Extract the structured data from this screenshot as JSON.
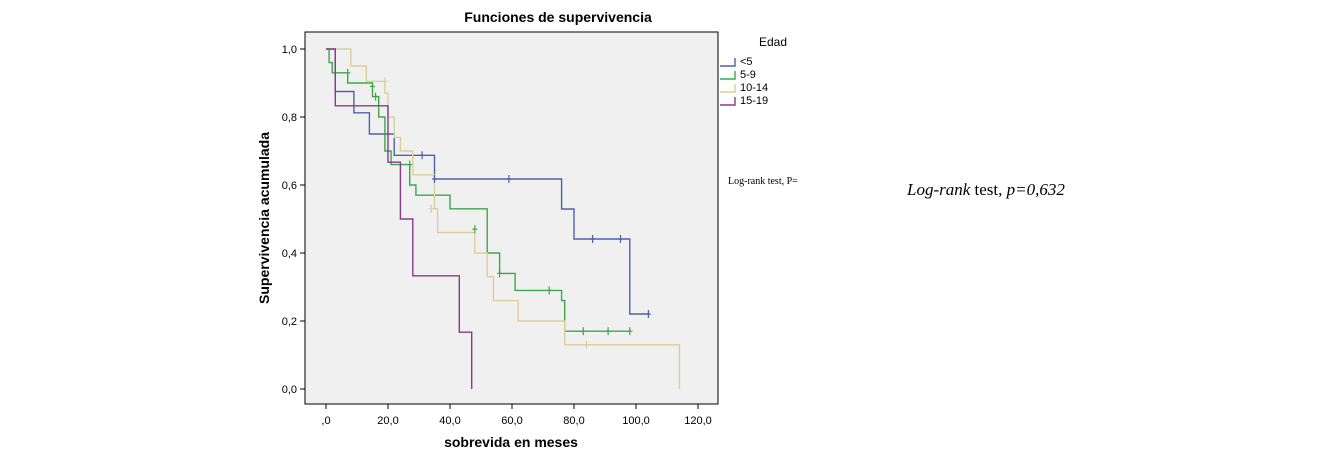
{
  "chart_data": {
    "type": "line",
    "step": true,
    "title": "Funciones de supervivencia",
    "xlabel": "sobrevida en meses",
    "ylabel": "Supervivencia acumulada",
    "xlim": [
      0,
      120
    ],
    "ylim": [
      0,
      1
    ],
    "xticks": [
      0,
      20,
      40,
      60,
      80,
      100,
      120
    ],
    "xtick_labels": [
      ",0",
      "20,0",
      "40,0",
      "60,0",
      "80,0",
      "100,0",
      "120,0"
    ],
    "yticks": [
      0,
      0.2,
      0.4,
      0.6,
      0.8,
      1.0
    ],
    "ytick_labels": [
      "0,0",
      "0,2",
      "0,4",
      "0,6",
      "0,8",
      "1,0"
    ],
    "grid": false,
    "legend_title": "Edad",
    "legend_position": "right",
    "series": [
      {
        "name": "<5",
        "color": "#5060a8",
        "points": [
          [
            0,
            1.0
          ],
          [
            3,
            1.0
          ],
          [
            3,
            0.875
          ],
          [
            9,
            0.875
          ],
          [
            9,
            0.8125
          ],
          [
            14,
            0.8125
          ],
          [
            14,
            0.75
          ],
          [
            22,
            0.75
          ],
          [
            22,
            0.6875
          ],
          [
            35,
            0.6875
          ],
          [
            35,
            0.6176
          ],
          [
            76,
            0.6176
          ],
          [
            76,
            0.5294
          ],
          [
            80,
            0.5294
          ],
          [
            80,
            0.4412
          ],
          [
            98,
            0.4412
          ],
          [
            98,
            0.2206
          ],
          [
            104,
            0.2206
          ]
        ],
        "censored": [
          [
            31,
            0.6875
          ],
          [
            35,
            0.6176
          ],
          [
            59,
            0.6176
          ],
          [
            86,
            0.4412
          ],
          [
            95,
            0.4412
          ],
          [
            104,
            0.2206
          ]
        ]
      },
      {
        "name": "5-9",
        "color": "#3aa84a",
        "points": [
          [
            0,
            1.0
          ],
          [
            1,
            1.0
          ],
          [
            1,
            0.96
          ],
          [
            2,
            0.96
          ],
          [
            2,
            0.93
          ],
          [
            7,
            0.93
          ],
          [
            7,
            0.9
          ],
          [
            15,
            0.9
          ],
          [
            15,
            0.86
          ],
          [
            17,
            0.86
          ],
          [
            17,
            0.8
          ],
          [
            19,
            0.8
          ],
          [
            19,
            0.7
          ],
          [
            21,
            0.7
          ],
          [
            21,
            0.66
          ],
          [
            27,
            0.66
          ],
          [
            27,
            0.6
          ],
          [
            29,
            0.6
          ],
          [
            29,
            0.57
          ],
          [
            40,
            0.57
          ],
          [
            40,
            0.53
          ],
          [
            52,
            0.53
          ],
          [
            52,
            0.4
          ],
          [
            56,
            0.4
          ],
          [
            56,
            0.34
          ],
          [
            61,
            0.34
          ],
          [
            61,
            0.29
          ],
          [
            76,
            0.29
          ],
          [
            76,
            0.26
          ],
          [
            77,
            0.26
          ],
          [
            77,
            0.17
          ],
          [
            98,
            0.17
          ]
        ],
        "censored": [
          [
            7,
            0.93
          ],
          [
            15,
            0.89
          ],
          [
            16,
            0.86
          ],
          [
            27,
            0.66
          ],
          [
            48,
            0.47
          ],
          [
            56,
            0.34
          ],
          [
            72,
            0.29
          ],
          [
            83,
            0.17
          ],
          [
            91,
            0.17
          ],
          [
            98,
            0.17
          ]
        ]
      },
      {
        "name": "10-14",
        "color": "#d8d09a",
        "points": [
          [
            0,
            1.0
          ],
          [
            8,
            1.0
          ],
          [
            8,
            0.95
          ],
          [
            13,
            0.95
          ],
          [
            13,
            0.905
          ],
          [
            19,
            0.905
          ],
          [
            19,
            0.87
          ],
          [
            20,
            0.87
          ],
          [
            20,
            0.8
          ],
          [
            22,
            0.8
          ],
          [
            22,
            0.74
          ],
          [
            24,
            0.74
          ],
          [
            24,
            0.7
          ],
          [
            28,
            0.7
          ],
          [
            28,
            0.63
          ],
          [
            35,
            0.63
          ],
          [
            35,
            0.53
          ],
          [
            36,
            0.53
          ],
          [
            36,
            0.46
          ],
          [
            48,
            0.46
          ],
          [
            48,
            0.4
          ],
          [
            52,
            0.4
          ],
          [
            52,
            0.33
          ],
          [
            54,
            0.33
          ],
          [
            54,
            0.26
          ],
          [
            62,
            0.26
          ],
          [
            62,
            0.2
          ],
          [
            77,
            0.2
          ],
          [
            77,
            0.13
          ],
          [
            114,
            0.13
          ],
          [
            114,
            0.0
          ]
        ],
        "censored": [
          [
            19,
            0.905
          ],
          [
            34,
            0.53
          ],
          [
            84,
            0.13
          ]
        ]
      },
      {
        "name": "15-19",
        "color": "#8a3a8a",
        "points": [
          [
            0,
            1.0
          ],
          [
            3,
            1.0
          ],
          [
            3,
            0.833
          ],
          [
            20,
            0.833
          ],
          [
            20,
            0.667
          ],
          [
            24,
            0.667
          ],
          [
            24,
            0.5
          ],
          [
            28,
            0.5
          ],
          [
            28,
            0.333
          ],
          [
            43,
            0.333
          ],
          [
            43,
            0.167
          ],
          [
            47,
            0.167
          ],
          [
            47,
            0.0
          ]
        ],
        "censored": []
      }
    ],
    "annotations": [
      "Log-rank test, P="
    ]
  },
  "annotation_right": {
    "italic_part": "Log-rank",
    "normal_part": " test, ",
    "p_part": "p=0,632"
  }
}
